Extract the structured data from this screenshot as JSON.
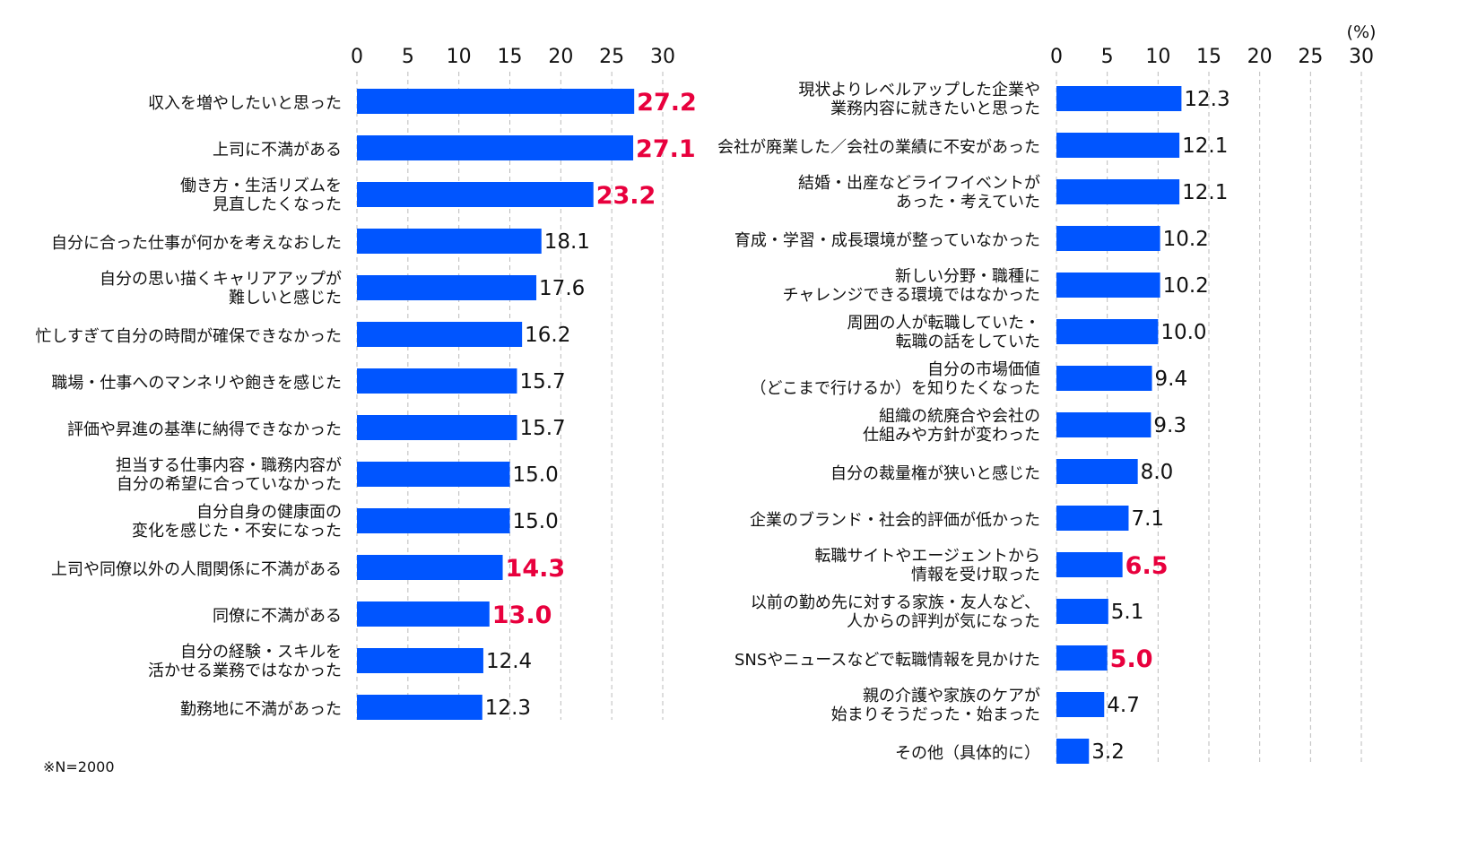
{
  "footnote": "※N=2000",
  "unit_label": "(%)",
  "colors": {
    "bar": "#0055FF",
    "highlight_value": "#E8003D",
    "value": "#111111",
    "grid": "#BBBBBB"
  },
  "chart_data": [
    {
      "type": "bar",
      "orientation": "horizontal",
      "xlim": [
        0,
        30
      ],
      "ticks": [
        "0",
        "5",
        "10",
        "15",
        "20",
        "25",
        "30"
      ],
      "grid": "vertical dashed",
      "categories": [
        [
          "収入を増やしたいと思った"
        ],
        [
          "上司に不満がある"
        ],
        [
          "働き方・生活リズムを",
          "見直したくなった"
        ],
        [
          "自分に合った仕事が何かを考えなおした"
        ],
        [
          "自分の思い描くキャリアアップが",
          "難しいと感じた"
        ],
        [
          "忙しすぎて自分の時間が確保できなかった"
        ],
        [
          "職場・仕事へのマンネリや飽きを感じた"
        ],
        [
          "評価や昇進の基準に納得できなかった"
        ],
        [
          "担当する仕事内容・職務内容が",
          "自分の希望に合っていなかった"
        ],
        [
          "自分自身の健康面の",
          "変化を感じた・不安になった"
        ],
        [
          "上司や同僚以外の人間関係に不満がある"
        ],
        [
          "同僚に不満がある"
        ],
        [
          "自分の経験・スキルを",
          "活かせる業務ではなかった"
        ],
        [
          "勤務地に不満があった"
        ]
      ],
      "values": [
        "27.2",
        "27.1",
        "23.2",
        "18.1",
        "17.6",
        "16.2",
        "15.7",
        "15.7",
        "15.0",
        "15.0",
        "14.3",
        "13.0",
        "12.4",
        "12.3"
      ],
      "highlighted": [
        true,
        true,
        true,
        false,
        false,
        false,
        false,
        false,
        false,
        false,
        true,
        true,
        false,
        false
      ]
    },
    {
      "type": "bar",
      "orientation": "horizontal",
      "xlim": [
        0,
        30
      ],
      "ticks": [
        "0",
        "5",
        "10",
        "15",
        "20",
        "25",
        "30"
      ],
      "grid": "vertical dashed",
      "categories": [
        [
          "現状よりレベルアップした企業や",
          "業務内容に就きたいと思った"
        ],
        [
          "会社が廃業した／会社の業績に不安があった"
        ],
        [
          "結婚・出産などライフイベントが",
          "あった・考えていた"
        ],
        [
          "育成・学習・成長環境が整っていなかった"
        ],
        [
          "新しい分野・職種に",
          "チャレンジできる環境ではなかった"
        ],
        [
          "周囲の人が転職していた・",
          "転職の話をしていた"
        ],
        [
          "自分の市場価値",
          "（どこまで行けるか）を知りたくなった"
        ],
        [
          "組織の統廃合や会社の",
          "仕組みや方針が変わった"
        ],
        [
          "自分の裁量権が狭いと感じた"
        ],
        [
          "企業のブランド・社会的評価が低かった"
        ],
        [
          "転職サイトやエージェントから",
          "情報を受け取った"
        ],
        [
          "以前の勤め先に対する家族・友人など、",
          "人からの評判が気になった"
        ],
        [
          "SNSやニュースなどで転職情報を見かけた"
        ],
        [
          "親の介護や家族のケアが",
          "始まりそうだった・始まった"
        ],
        [
          "その他（具体的に）"
        ]
      ],
      "values": [
        "12.3",
        "12.1",
        "12.1",
        "10.2",
        "10.2",
        "10.0",
        "9.4",
        "9.3",
        "8.0",
        "7.1",
        "6.5",
        "5.1",
        "5.0",
        "4.7",
        "3.2"
      ],
      "highlighted": [
        false,
        false,
        false,
        false,
        false,
        false,
        false,
        false,
        false,
        false,
        true,
        false,
        true,
        false,
        false
      ]
    }
  ]
}
